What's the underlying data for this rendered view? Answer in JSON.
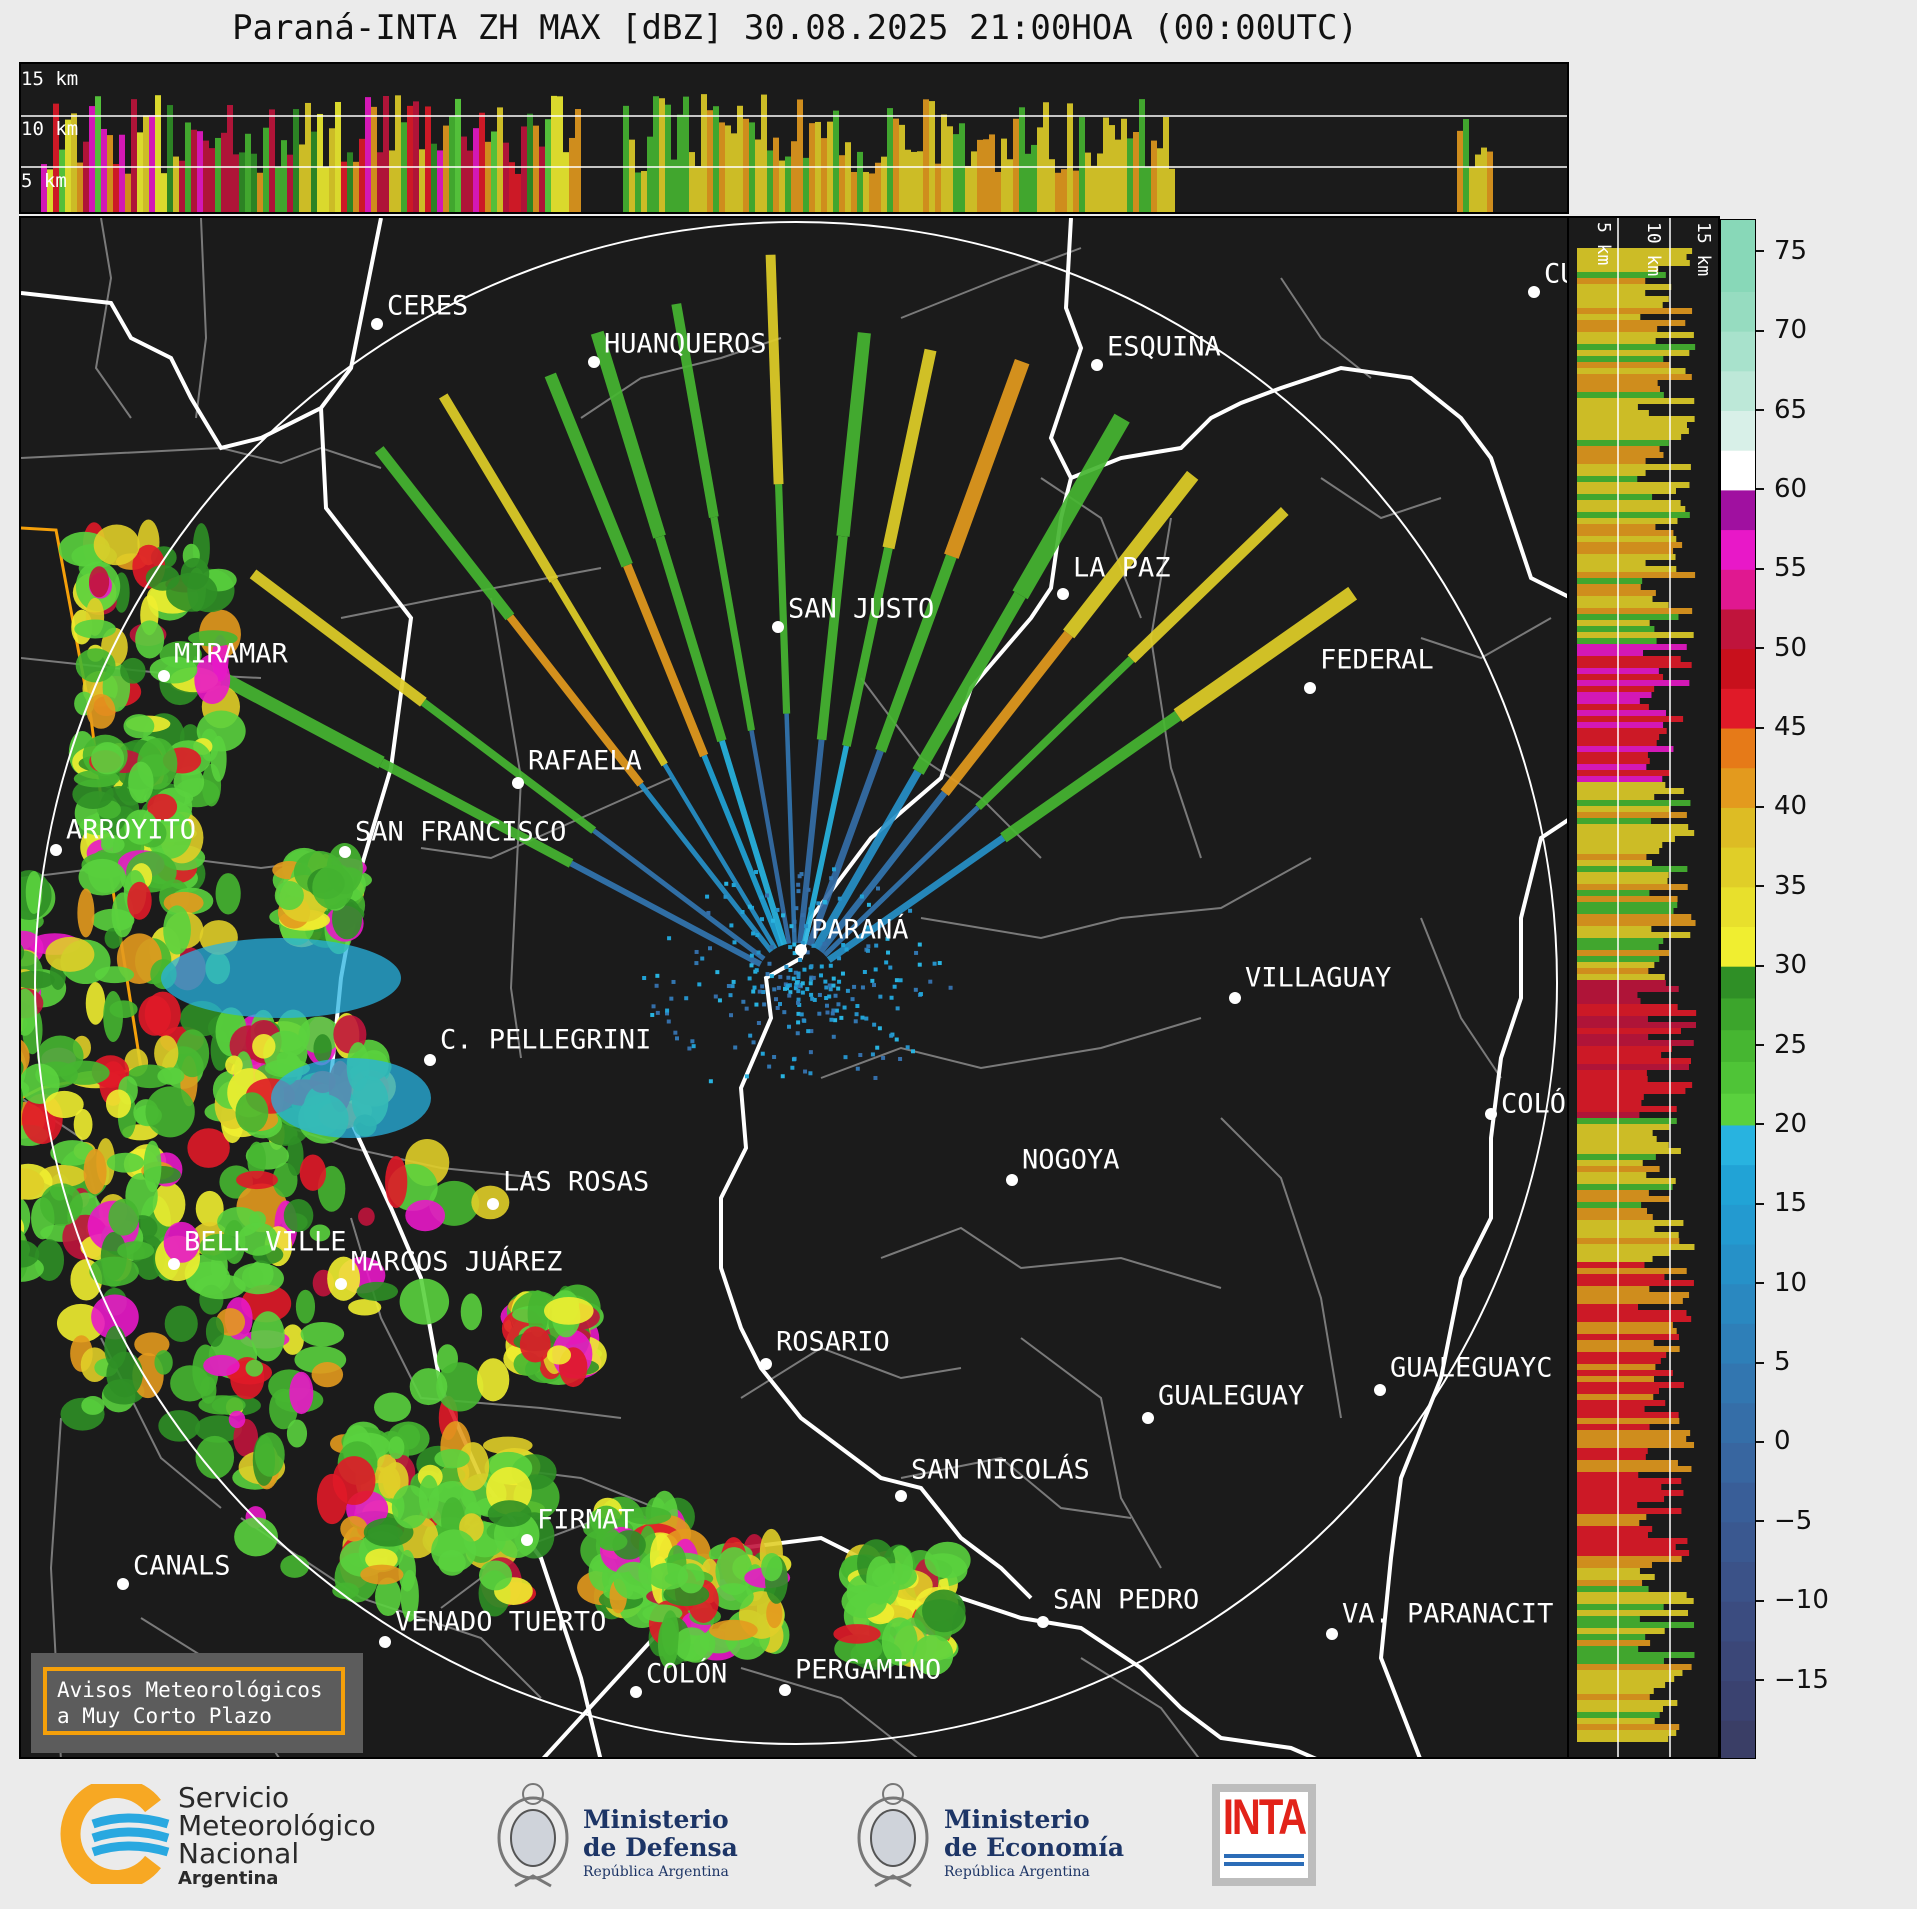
{
  "title": "Paraná-INTA ZH MAX [dBZ] 30.08.2025 21:00HOA (00:00UTC)",
  "top_altitude_labels": [
    "15 km",
    "10 km",
    "5 km"
  ],
  "side_altitude_labels": [
    "5 km",
    "10 km",
    "15 km"
  ],
  "colorbar": {
    "unit": "dBZ",
    "ticks": [
      "75",
      "70",
      "65",
      "60",
      "55",
      "50",
      "45",
      "40",
      "35",
      "30",
      "25",
      "20",
      "15",
      "10",
      "5",
      "0",
      "−5",
      "−10",
      "−15"
    ],
    "range": [
      -20,
      77
    ]
  },
  "cities": [
    {
      "name": "CERES"
    },
    {
      "name": "HUANQUEROS"
    },
    {
      "name": "ESQUINA"
    },
    {
      "name": "CU"
    },
    {
      "name": "SAN JUSTO"
    },
    {
      "name": "LA PAZ"
    },
    {
      "name": "MIRAMAR"
    },
    {
      "name": "FEDERAL"
    },
    {
      "name": "RAFAELA"
    },
    {
      "name": "ARROYITO"
    },
    {
      "name": "SAN FRANCISCO"
    },
    {
      "name": "PARANÁ"
    },
    {
      "name": "VILLAGUAY"
    },
    {
      "name": "C. PELLEGRINI"
    },
    {
      "name": "COLÓ"
    },
    {
      "name": "NOGOYA"
    },
    {
      "name": "LAS ROSAS"
    },
    {
      "name": "BELL VILLE"
    },
    {
      "name": "MARCOS JUÁREZ"
    },
    {
      "name": "ROSARIO"
    },
    {
      "name": "GUALEGUAYC"
    },
    {
      "name": "GUALEGUAY"
    },
    {
      "name": "SAN NICOLÁS"
    },
    {
      "name": "FIRMAT"
    },
    {
      "name": "CANALS"
    },
    {
      "name": "SAN PEDRO"
    },
    {
      "name": "VENADO TUERTO"
    },
    {
      "name": "VA. PARANACIT"
    },
    {
      "name": "COLÓN"
    },
    {
      "name": "PERGAMINO"
    }
  ],
  "alerts_box": {
    "line1": "Avisos Meteorológicos",
    "line2": "a Muy Corto Plazo"
  },
  "footer": {
    "smn": {
      "line1": "Servicio",
      "line2": "Meteorológico",
      "line3": "Nacional",
      "line4": "Argentina"
    },
    "defensa": {
      "line1": "Ministerio",
      "line2": "de Defensa",
      "line3": "República Argentina"
    },
    "economia": {
      "line1": "Ministerio",
      "line2": "de Economía",
      "line3": "República Argentina"
    },
    "inta": {
      "label": "INTA"
    }
  },
  "colors": {
    "background": "#1b1b1b",
    "alert_border": "#f5a00a",
    "smn_yellow": "#f7a823",
    "smn_blue": "#29a8e0",
    "inta_red": "#e2231a"
  }
}
